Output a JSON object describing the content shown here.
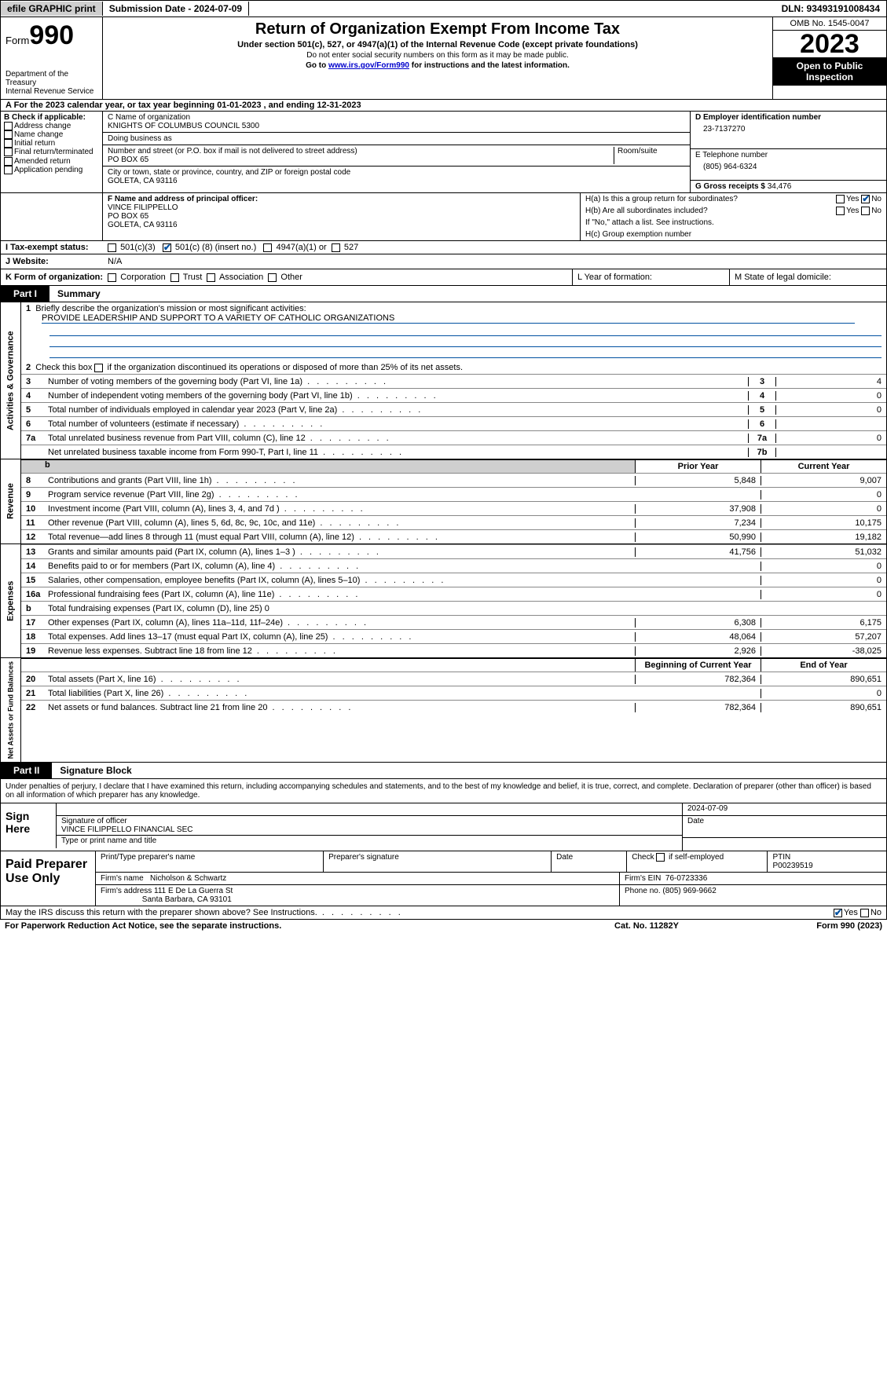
{
  "topbar": {
    "efile": "efile GRAPHIC print",
    "submission_label": "Submission Date - 2024-07-09",
    "dln": "DLN: 93493191008434"
  },
  "header": {
    "form_label": "Form",
    "form_num": "990",
    "dept": "Department of the Treasury",
    "irs": "Internal Revenue Service",
    "title": "Return of Organization Exempt From Income Tax",
    "subtitle": "Under section 501(c), 527, or 4947(a)(1) of the Internal Revenue Code (except private foundations)",
    "note1": "Do not enter social security numbers on this form as it may be made public.",
    "note2_pre": "Go to ",
    "note2_link": "www.irs.gov/Form990",
    "note2_post": " for instructions and the latest information.",
    "omb": "OMB No. 1545-0047",
    "year": "2023",
    "open": "Open to Public Inspection"
  },
  "rowA": "A For the 2023 calendar year, or tax year beginning 01-01-2023   , and ending 12-31-2023",
  "sectionB": {
    "label": "B Check if applicable:",
    "items": [
      "Address change",
      "Name change",
      "Initial return",
      "Final return/terminated",
      "Amended return",
      "Application pending"
    ]
  },
  "sectionC": {
    "name_lbl": "C Name of organization",
    "name": "KNIGHTS OF COLUMBUS COUNCIL 5300",
    "dba_lbl": "Doing business as",
    "dba": "",
    "street_lbl": "Number and street (or P.O. box if mail is not delivered to street address)",
    "room_lbl": "Room/suite",
    "street": "PO BOX 65",
    "city_lbl": "City or town, state or province, country, and ZIP or foreign postal code",
    "city": "GOLETA, CA  93116"
  },
  "sectionD": {
    "ein_lbl": "D Employer identification number",
    "ein": "23-7137270",
    "tel_lbl": "E Telephone number",
    "tel": "(805) 964-6324",
    "gross_lbl": "G Gross receipts $",
    "gross": "34,476"
  },
  "sectionF": {
    "lbl": "F  Name and address of principal officer:",
    "name": "VINCE FILIPPELLO",
    "addr1": "PO BOX 65",
    "addr2": "GOLETA, CA  93116"
  },
  "sectionH": {
    "ha": "H(a)  Is this a group return for subordinates?",
    "hb": "H(b)  Are all subordinates included?",
    "hb_note": "If \"No,\" attach a list. See instructions.",
    "hc": "H(c)  Group exemption number",
    "yes": "Yes",
    "no": "No"
  },
  "rowI": {
    "lbl": "I   Tax-exempt status:",
    "o1": "501(c)(3)",
    "o2a": "501(c) (",
    "o2b": "8",
    "o2c": ") (insert no.)",
    "o3": "4947(a)(1) or",
    "o4": "527"
  },
  "rowJ": {
    "lbl": "J   Website:",
    "val": "N/A"
  },
  "rowK": {
    "lbl": "K Form of organization:",
    "opts": [
      "Corporation",
      "Trust",
      "Association",
      "Other"
    ],
    "l_lbl": "L Year of formation:",
    "m_lbl": "M State of legal domicile:"
  },
  "part1": {
    "tag": "Part I",
    "title": "Summary",
    "q1": "Briefly describe the organization's mission or most significant activities:",
    "mission": "PROVIDE LEADERSHIP AND SUPPORT TO A VARIETY OF CATHOLIC ORGANIZATIONS",
    "q2": "Check this box      if the organization discontinued its operations or disposed of more than 25% of its net assets.",
    "lines_gov": [
      {
        "n": "3",
        "d": "Number of voting members of the governing body (Part VI, line 1a)",
        "box": "3",
        "v": "4"
      },
      {
        "n": "4",
        "d": "Number of independent voting members of the governing body (Part VI, line 1b)",
        "box": "4",
        "v": "0"
      },
      {
        "n": "5",
        "d": "Total number of individuals employed in calendar year 2023 (Part V, line 2a)",
        "box": "5",
        "v": "0"
      },
      {
        "n": "6",
        "d": "Total number of volunteers (estimate if necessary)",
        "box": "6",
        "v": ""
      },
      {
        "n": "7a",
        "d": "Total unrelated business revenue from Part VIII, column (C), line 12",
        "box": "7a",
        "v": "0"
      },
      {
        "n": "",
        "d": "Net unrelated business taxable income from Form 990-T, Part I, line 11",
        "box": "7b",
        "v": ""
      }
    ],
    "col_prior": "Prior Year",
    "col_current": "Current Year",
    "revenue": [
      {
        "n": "8",
        "d": "Contributions and grants (Part VIII, line 1h)",
        "p": "5,848",
        "c": "9,007"
      },
      {
        "n": "9",
        "d": "Program service revenue (Part VIII, line 2g)",
        "p": "",
        "c": "0"
      },
      {
        "n": "10",
        "d": "Investment income (Part VIII, column (A), lines 3, 4, and 7d )",
        "p": "37,908",
        "c": "0"
      },
      {
        "n": "11",
        "d": "Other revenue (Part VIII, column (A), lines 5, 6d, 8c, 9c, 10c, and 11e)",
        "p": "7,234",
        "c": "10,175"
      },
      {
        "n": "12",
        "d": "Total revenue—add lines 8 through 11 (must equal Part VIII, column (A), line 12)",
        "p": "50,990",
        "c": "19,182"
      }
    ],
    "expenses": [
      {
        "n": "13",
        "d": "Grants and similar amounts paid (Part IX, column (A), lines 1–3 )",
        "p": "41,756",
        "c": "51,032"
      },
      {
        "n": "14",
        "d": "Benefits paid to or for members (Part IX, column (A), line 4)",
        "p": "",
        "c": "0"
      },
      {
        "n": "15",
        "d": "Salaries, other compensation, employee benefits (Part IX, column (A), lines 5–10)",
        "p": "",
        "c": "0"
      },
      {
        "n": "16a",
        "d": "Professional fundraising fees (Part IX, column (A), line 11e)",
        "p": "",
        "c": "0"
      },
      {
        "n": "b",
        "d": "Total fundraising expenses (Part IX, column (D), line 25) 0",
        "p": "grey",
        "c": "grey"
      },
      {
        "n": "17",
        "d": "Other expenses (Part IX, column (A), lines 11a–11d, 11f–24e)",
        "p": "6,308",
        "c": "6,175"
      },
      {
        "n": "18",
        "d": "Total expenses. Add lines 13–17 (must equal Part IX, column (A), line 25)",
        "p": "48,064",
        "c": "57,207"
      },
      {
        "n": "19",
        "d": "Revenue less expenses. Subtract line 18 from line 12",
        "p": "2,926",
        "c": "-38,025"
      }
    ],
    "col_begin": "Beginning of Current Year",
    "col_end": "End of Year",
    "netassets": [
      {
        "n": "20",
        "d": "Total assets (Part X, line 16)",
        "p": "782,364",
        "c": "890,651"
      },
      {
        "n": "21",
        "d": "Total liabilities (Part X, line 26)",
        "p": "",
        "c": "0"
      },
      {
        "n": "22",
        "d": "Net assets or fund balances. Subtract line 21 from line 20",
        "p": "782,364",
        "c": "890,651"
      }
    ],
    "vlabels": [
      "Activities & Governance",
      "Revenue",
      "Expenses",
      "Net Assets or Fund Balances"
    ]
  },
  "part2": {
    "tag": "Part II",
    "title": "Signature Block",
    "decl": "Under penalties of perjury, I declare that I have examined this return, including accompanying schedules and statements, and to the best of my knowledge and belief, it is true, correct, and complete. Declaration of preparer (other than officer) is based on all information of which preparer has any knowledge.",
    "sign_here": "Sign Here",
    "sig_date": "2024-07-09",
    "sig_lbl": "Signature of officer",
    "sig_name": "VINCE FILIPPELLO  FINANCIAL SEC",
    "type_lbl": "Type or print name and title",
    "date_lbl": "Date",
    "paid_prep": "Paid Preparer Use Only",
    "prep_name_lbl": "Print/Type preparer's name",
    "prep_sig_lbl": "Preparer's signature",
    "prep_date_lbl": "Date",
    "prep_chk": "Check       if self-employed",
    "ptin_lbl": "PTIN",
    "ptin": "P00239519",
    "firm_name_lbl": "Firm's name",
    "firm_name": "Nicholson & Schwartz",
    "firm_ein_lbl": "Firm's EIN",
    "firm_ein": "76-0723336",
    "firm_addr_lbl": "Firm's address",
    "firm_addr": "111 E De La Guerra St",
    "firm_city": "Santa Barbara, CA  93101",
    "firm_phone_lbl": "Phone no.",
    "firm_phone": "(805) 969-9662",
    "may_irs": "May the IRS discuss this return with the preparer shown above? See Instructions."
  },
  "footer": {
    "pra": "For Paperwork Reduction Act Notice, see the separate instructions.",
    "cat": "Cat. No. 11282Y",
    "form": "Form 990 (2023)"
  }
}
